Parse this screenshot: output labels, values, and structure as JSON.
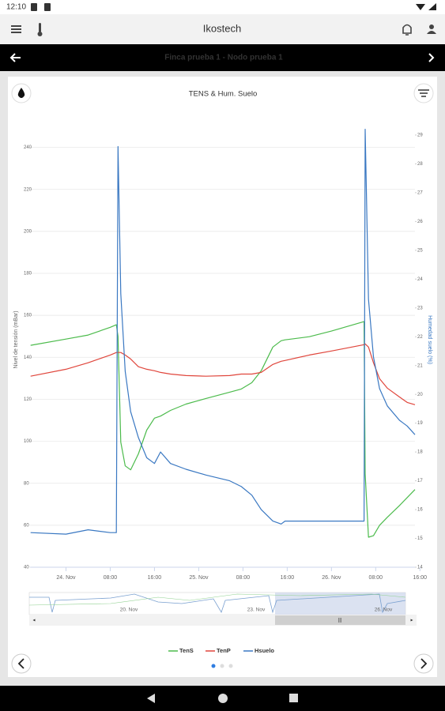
{
  "status_bar": {
    "time": "12:10"
  },
  "app_bar": {
    "title": "Ikostech"
  },
  "sub_bar": {
    "title": "Finca prueba 1 - Nodo prueba 1"
  },
  "chart_data": {
    "type": "line",
    "title": "TENS & Hum. Suelo",
    "ylabel": "Nivel de tensión (mBar)",
    "y2label": "Humedad suelo (%)",
    "x": [
      -6.4,
      0,
      4,
      8,
      9.1,
      9.4,
      9.9,
      10.7,
      11.7,
      13.1,
      14.6,
      16,
      17.1,
      18.9,
      21.7,
      25.3,
      29.6,
      31.7,
      33.6,
      35.3,
      37.4,
      38.9,
      39.6,
      44,
      48,
      53.9,
      54.1,
      54.7,
      55.6,
      56.7,
      58.1,
      60.3,
      61.7,
      63.1
    ],
    "xlim": [
      -6.5,
      63.1
    ],
    "xticks": [
      {
        "value": 0,
        "label": "24. Nov"
      },
      {
        "value": 8,
        "label": "08:00"
      },
      {
        "value": 16,
        "label": "16:00"
      },
      {
        "value": 24,
        "label": "25. Nov"
      },
      {
        "value": 32,
        "label": "08:00"
      },
      {
        "value": 40,
        "label": "16:00"
      },
      {
        "value": 48,
        "label": "26. Nov"
      },
      {
        "value": 56,
        "label": "08:00"
      },
      {
        "value": 64,
        "label": "16:00"
      }
    ],
    "ylim": [
      40,
      250
    ],
    "yticks": [
      40,
      60,
      80,
      100,
      120,
      140,
      160,
      180,
      200,
      220,
      240
    ],
    "y2lim": [
      14,
      29.3
    ],
    "y2ticks": [
      14,
      15,
      16,
      17,
      18,
      19,
      20,
      21,
      22,
      23,
      24,
      25,
      26,
      27,
      28,
      29
    ],
    "grid": true,
    "legend": "bottom",
    "series": [
      {
        "name": "TenS",
        "color": "#4cbb4c",
        "values": [
          145.7,
          148.7,
          150.6,
          154.3,
          155.5,
          150,
          99.6,
          88.3,
          86.4,
          94,
          105.3,
          111,
          112,
          114.7,
          117.7,
          120.4,
          123.4,
          124.9,
          127.9,
          133.6,
          144.9,
          147.9,
          148.3,
          149.8,
          152.5,
          157,
          84.5,
          54.3,
          55,
          60,
          63.8,
          69.4,
          73.2,
          77
        ]
      },
      {
        "name": "TenP",
        "color": "#e0463c",
        "values": [
          131,
          134.3,
          137.4,
          141.1,
          142.3,
          142.3,
          142.3,
          141.1,
          139.2,
          135.5,
          134.3,
          133.6,
          132.8,
          132,
          131.3,
          131,
          131.3,
          132,
          132,
          132.8,
          136.6,
          138.1,
          138.5,
          141.1,
          143,
          146,
          146.4,
          144.9,
          137.4,
          129.8,
          125.3,
          121.1,
          118.5,
          117.4
        ]
      },
      {
        "name": "Hsuelo",
        "color": "#3a78c2",
        "axis": "y2",
        "values": [
          15.2,
          15.15,
          15.3,
          15.2,
          15.2,
          28.6,
          23.5,
          20.8,
          19.4,
          18.5,
          17.8,
          17.6,
          18.0,
          17.6,
          17.4,
          17.2,
          17.0,
          16.8,
          16.5,
          16.0,
          15.6,
          15.5,
          15.6,
          15.6,
          15.6,
          15.6,
          29.2,
          23.3,
          21.3,
          20.2,
          19.6,
          19.1,
          18.9,
          18.6
        ]
      }
    ]
  },
  "navigator": {
    "labels": [
      "20. Nov",
      "23. Nov",
      "26. Nov"
    ],
    "handle": "|||"
  }
}
